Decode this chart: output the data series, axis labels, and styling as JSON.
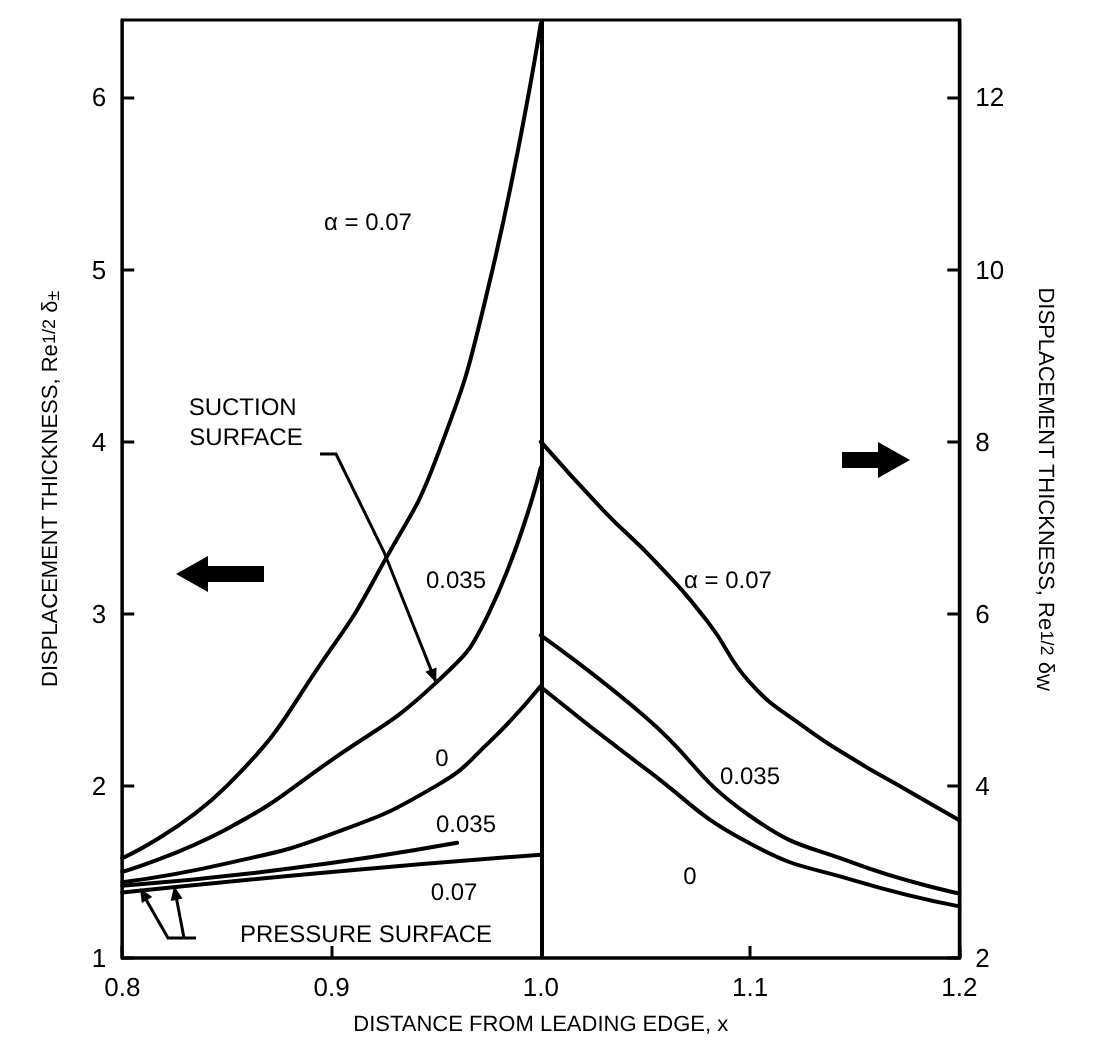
{
  "chart_data": {
    "type": "line",
    "xlabel": "DISTANCE FROM LEADING EDGE, x",
    "ylabel": "DISPLACEMENT THICKNESS, Re$^{1/2}$ δ$_{±}$",
    "y2label": "DISPLACEMENT THICKNESS, Re$^{1/2}$ δ$_{W}$",
    "xlim": [
      0.8,
      1.2
    ],
    "xticks": [
      0.8,
      0.9,
      {
        "value": 1,
        "label": "1.0"
      },
      1.1,
      1.2
    ],
    "ylim": [
      1,
      6.45
    ],
    "yticks": [
      1,
      2,
      3,
      4,
      5,
      6
    ],
    "y2lim": [
      2,
      12.9
    ],
    "y2ticks": [
      2,
      4,
      6,
      8,
      10,
      12
    ],
    "grid": false,
    "marker": "none",
    "line_style": "solid",
    "series": [
      {
        "color": "#000000",
        "x": [
          0.8,
          0.85,
          0.9,
          0.925,
          0.95,
          0.975,
          1.0
        ],
        "values": [
          1.58,
          2.0,
          2.8,
          3.3,
          3.9,
          4.9,
          6.43
        ]
      },
      {
        "color": "#000000",
        "x": [
          0.8,
          0.85,
          0.9,
          0.95,
          0.975,
          1.0
        ],
        "values": [
          1.5,
          1.75,
          2.15,
          2.6,
          3.0,
          3.85
        ]
      },
      {
        "color": "#000000",
        "x": [
          0.8,
          0.85,
          0.9,
          0.95,
          0.975,
          1.0
        ],
        "values": [
          1.44,
          1.55,
          1.72,
          2.0,
          2.25,
          2.58
        ]
      },
      {
        "color": "#000000",
        "x": [
          0.8,
          0.88,
          0.96
        ],
        "values": [
          1.42,
          1.52,
          1.67
        ]
      },
      {
        "color": "#000000",
        "x": [
          0.8,
          0.9,
          1.0
        ],
        "values": [
          1.38,
          1.5,
          1.6
        ]
      },
      {
        "color": "#000000",
        "axis": "y2",
        "x": [
          1.0,
          1.03,
          1.055,
          1.08,
          1.1,
          1.125,
          1.15,
          1.175,
          1.2
        ],
        "values": [
          8.0,
          7.2,
          6.6,
          5.9,
          5.2,
          4.7,
          4.3,
          3.95,
          3.6
        ]
      },
      {
        "color": "#000000",
        "axis": "y2",
        "x": [
          1.0,
          1.05,
          1.1,
          1.15,
          1.2
        ],
        "values": [
          5.75,
          4.8,
          3.65,
          3.1,
          2.75
        ]
      },
      {
        "color": "#000000",
        "axis": "y2",
        "x": [
          1.0,
          1.05,
          1.1,
          1.15,
          1.2
        ],
        "values": [
          5.15,
          4.2,
          3.33,
          2.9,
          2.6
        ]
      }
    ],
    "ref_lines": [
      {
        "axis": "x",
        "value": 1.0,
        "color": "#000000",
        "line_style": "solid"
      }
    ],
    "annotations": [
      "α = 0.07",
      "0.035",
      "0",
      "0.035",
      "0.07",
      {
        "text": "SUCTION SURFACE",
        "x": 0.95,
        "y": 2.6
      },
      "PRESSURE SURFACE",
      "α = 0.07",
      "0.035",
      "0"
    ]
  }
}
